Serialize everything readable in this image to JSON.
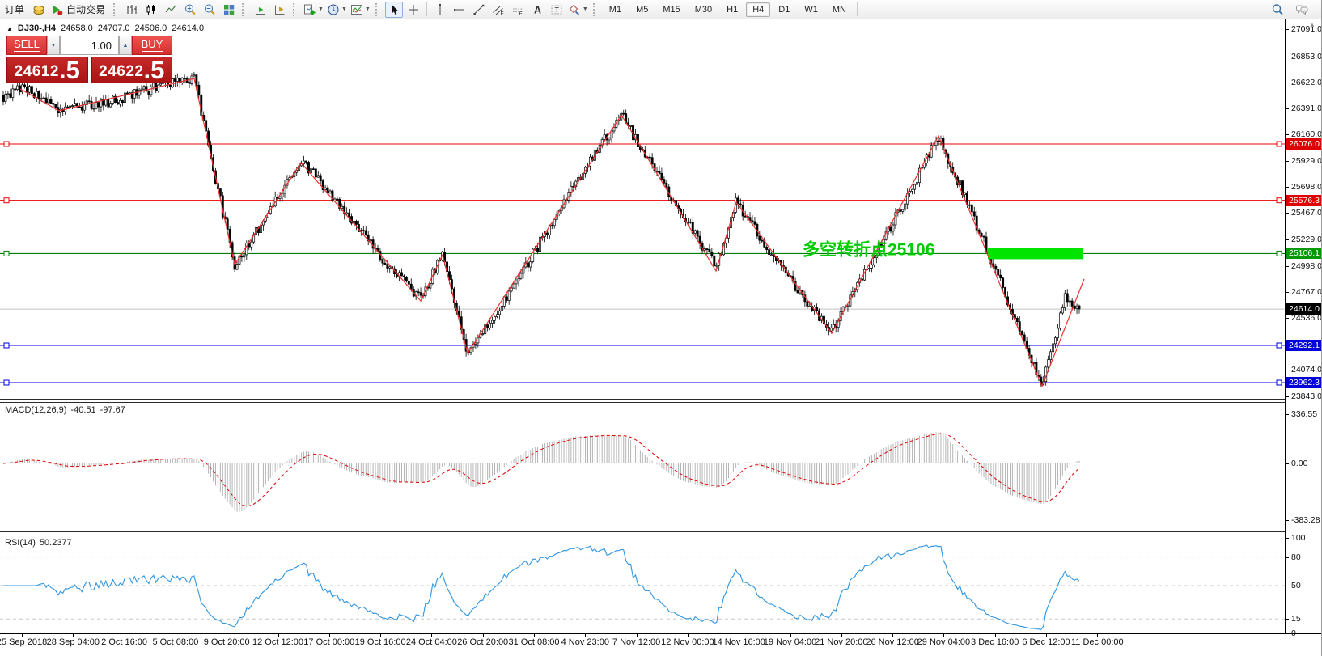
{
  "toolbar": {
    "items": [
      {
        "name": "new-order-button",
        "type": "text",
        "label": "订单"
      },
      {
        "name": "gold-icon",
        "type": "icon",
        "icon": "goldbars",
        "interact": false
      },
      {
        "name": "autotrade-button",
        "type": "icontext",
        "icon": "autotrade",
        "label": "自动交易"
      },
      {
        "type": "grip"
      },
      {
        "name": "chart-bars-button",
        "type": "icon",
        "icon": "barchart"
      },
      {
        "name": "chart-candles-button",
        "type": "icon",
        "icon": "candles"
      },
      {
        "name": "chart-line-button",
        "type": "icon",
        "icon": "linechart"
      },
      {
        "name": "zoom-in-button",
        "type": "icon",
        "icon": "zoomin"
      },
      {
        "name": "zoom-out-button",
        "type": "icon",
        "icon": "zoomout"
      },
      {
        "name": "tile-windows-button",
        "type": "icon",
        "icon": "tile"
      },
      {
        "type": "grip"
      },
      {
        "name": "auto-scroll-button",
        "type": "icon",
        "icon": "autoscroll"
      },
      {
        "name": "chart-shift-button",
        "type": "icon",
        "icon": "chartshift"
      },
      {
        "type": "grip"
      },
      {
        "name": "new-chart-button",
        "type": "icon",
        "icon": "newchart",
        "dropdown": true
      },
      {
        "name": "periods-button",
        "type": "icon",
        "icon": "clock",
        "dropdown": true
      },
      {
        "name": "indicators-button",
        "type": "icon",
        "icon": "indicators",
        "dropdown": true
      },
      {
        "type": "grip"
      },
      {
        "name": "cursor-button",
        "type": "icon",
        "icon": "cursor",
        "active": true
      },
      {
        "name": "crosshair-button",
        "type": "icon",
        "icon": "crosshair"
      },
      {
        "type": "sep"
      },
      {
        "name": "vertical-line-button",
        "type": "icon",
        "icon": "vline"
      },
      {
        "name": "horizontal-line-button",
        "type": "icon",
        "icon": "hline"
      },
      {
        "name": "trendline-button",
        "type": "icon",
        "icon": "trendline"
      },
      {
        "name": "equidistant-channel-button",
        "type": "icon",
        "icon": "channel"
      },
      {
        "name": "fibonacci-button",
        "type": "icon",
        "icon": "fibo"
      },
      {
        "name": "text-button",
        "type": "icon",
        "icon": "texttool"
      },
      {
        "name": "label-button",
        "type": "icon",
        "icon": "labeltool"
      },
      {
        "name": "arrows-button",
        "type": "icon",
        "icon": "shapes",
        "dropdown": true
      },
      {
        "type": "grip"
      }
    ],
    "timeframes": [
      "M1",
      "M5",
      "M15",
      "M30",
      "H1",
      "H4",
      "D1",
      "W1",
      "MN"
    ],
    "active_timeframe": "H4",
    "right_icons": [
      {
        "name": "search-button",
        "icon": "search"
      },
      {
        "name": "chat-button",
        "icon": "chat"
      }
    ]
  },
  "chart_header": {
    "collapse": "▲",
    "symbol": "DJ30-,H4",
    "open": "24658.0",
    "high": "24707.0",
    "low": "24506.0",
    "close": "24614.0"
  },
  "trade_panel": {
    "sell_label": "SELL",
    "buy_label": "BUY",
    "volume": "1.00",
    "sell_price": "24612",
    "sell_price_big": ".5",
    "buy_price": "24622",
    "buy_price_big": ".5"
  },
  "chart_data": {
    "type": "candlestick",
    "symbol": "DJ30-",
    "timeframe": "H4",
    "title": "DJ30-,H4",
    "ohlc_current": [
      24658.0,
      24707.0,
      24506.0,
      24614.0
    ],
    "ylim": [
      23843.0,
      27091.0
    ],
    "price_ticks": [
      27091.0,
      26853.0,
      26622.0,
      26391.0,
      26160.0,
      25929.0,
      25698.0,
      25467.0,
      25229.0,
      24998.0,
      24767.0,
      24536.0,
      24074.0,
      23843.0
    ],
    "markers": [
      {
        "label": "26076.0",
        "value": 26076.0,
        "color": "#dd0000"
      },
      {
        "label": "25576.3",
        "value": 25576.3,
        "color": "#dd0000"
      },
      {
        "label": "25106.1",
        "value": 25106.1,
        "color": "#009a00"
      },
      {
        "label": "24614.0",
        "value": 24614.0,
        "color": "#000000"
      },
      {
        "label": "24292.1",
        "value": 24292.1,
        "color": "#0000dd"
      },
      {
        "label": "23962.3",
        "value": 23962.3,
        "color": "#0000dd"
      }
    ],
    "hlines": [
      {
        "price": 26076.0,
        "color": "#ee0000"
      },
      {
        "price": 25576.3,
        "color": "#ee0000"
      },
      {
        "price": 25106.1,
        "color": "#008000"
      },
      {
        "price": 24292.1,
        "color": "#0000e0"
      },
      {
        "price": 23962.3,
        "color": "#0000e0"
      }
    ],
    "current_price": 24614.0,
    "current_price_color": "#c0c0c0",
    "annotation": {
      "text": "多空转折点25106",
      "color": "#00cc00"
    },
    "highlight_rect": {
      "price": 25106.1,
      "color": "#00e400"
    },
    "zigzag_color": "#f03030",
    "zigzag_points": [
      [
        25,
        26563
      ],
      [
        73,
        26370
      ],
      [
        240,
        26656
      ],
      [
        290,
        25008
      ],
      [
        372,
        25911
      ],
      [
        520,
        24686
      ],
      [
        547,
        25094
      ],
      [
        578,
        24220
      ],
      [
        768,
        26334
      ],
      [
        885,
        24951
      ],
      [
        910,
        25560
      ],
      [
        1028,
        24399
      ],
      [
        1160,
        26148
      ],
      [
        1288,
        23930
      ],
      [
        1340,
        24880
      ]
    ],
    "candle_guide": [
      [
        4,
        26480
      ],
      [
        25,
        26563
      ],
      [
        73,
        26370
      ],
      [
        240,
        26656
      ],
      [
        290,
        25008
      ],
      [
        372,
        25911
      ],
      [
        520,
        24686
      ],
      [
        547,
        25094
      ],
      [
        578,
        24220
      ],
      [
        768,
        26334
      ],
      [
        885,
        24951
      ],
      [
        910,
        25560
      ],
      [
        1028,
        24399
      ],
      [
        1160,
        26148
      ],
      [
        1288,
        23930
      ],
      [
        1316,
        24730
      ],
      [
        1338,
        24614
      ]
    ],
    "x_labels": [
      "25 Sep 2018",
      "28 Sep 04:00",
      "2 Oct 16:00",
      "5 Oct 08:00",
      "9 Oct 20:00",
      "12 Oct 12:00",
      "17 Oct 00:00",
      "19 Oct 16:00",
      "24 Oct 04:00",
      "26 Oct 20:00",
      "31 Oct 08:00",
      "4 Nov 23:00",
      "7 Nov 12:00",
      "12 Nov 00:00",
      "14 Nov 16:00",
      "19 Nov 04:00",
      "21 Nov 20:00",
      "26 Nov 12:00",
      "29 Nov 04:00",
      "3 Dec 16:00",
      "6 Dec 12:00",
      "11 Dec 00:00"
    ],
    "macd": {
      "label": "MACD(12,26,9)",
      "value_macd": "-40.51",
      "value_signal": "-97.67",
      "ticks": [
        "336.55",
        "0.00",
        "-383.28"
      ],
      "histogram_color": "#b4b4b4",
      "signal_color": "#e00000"
    },
    "rsi": {
      "label": "RSI(14)",
      "value": "50.2377",
      "levels": [
        80,
        50,
        15
      ],
      "ticks": [
        "100",
        "80",
        "50",
        "15",
        "0"
      ],
      "line_color": "#2f95e0"
    }
  }
}
